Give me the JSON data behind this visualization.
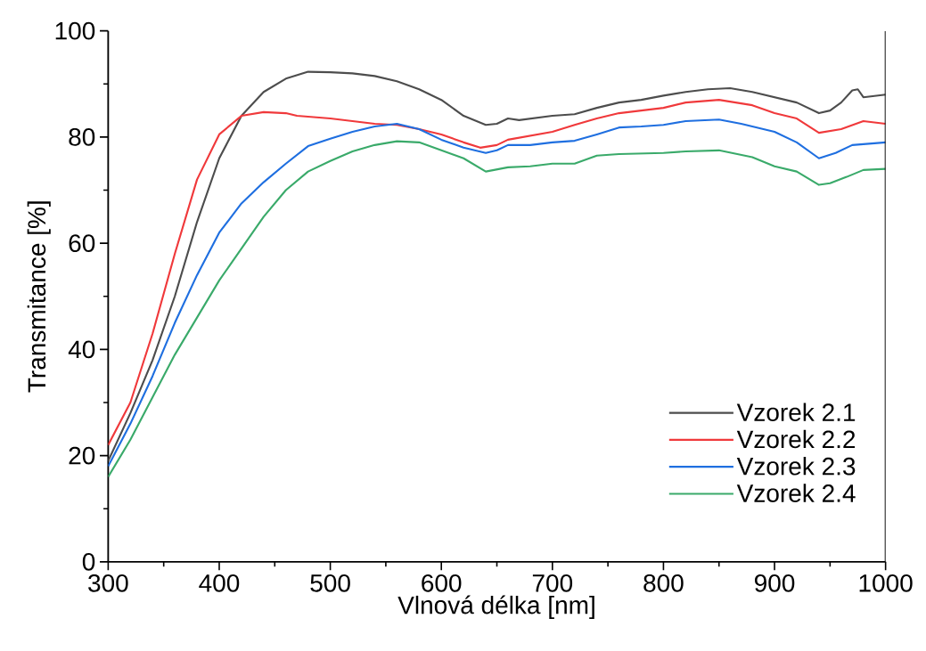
{
  "chart_data": {
    "type": "line",
    "xlabel": "Vlnová délka [nm]",
    "ylabel": "Transmitance [%]",
    "xlim": [
      300,
      1000
    ],
    "ylim": [
      0,
      100
    ],
    "xticks": [
      300,
      400,
      500,
      600,
      700,
      800,
      900,
      1000
    ],
    "yticks": [
      0,
      20,
      40,
      60,
      80,
      100
    ],
    "legend": "bottom right",
    "grid": false,
    "marker": "none",
    "line_style": "solid",
    "series": [
      {
        "name": "Vzorek 2.1",
        "color": "#4d4d4d",
        "x": [
          300,
          320,
          340,
          360,
          380,
          400,
          420,
          440,
          460,
          480,
          500,
          520,
          540,
          560,
          580,
          600,
          620,
          640,
          650,
          660,
          670,
          700,
          720,
          740,
          760,
          780,
          800,
          820,
          840,
          860,
          880,
          900,
          920,
          940,
          950,
          960,
          970,
          975,
          980,
          1000
        ],
        "values": [
          19,
          28,
          38,
          50,
          64,
          76,
          84,
          88.5,
          91,
          92.3,
          92.2,
          92,
          91.5,
          90.5,
          89,
          87,
          84,
          82.3,
          82.5,
          83.5,
          83.2,
          84,
          84.3,
          85.5,
          86.5,
          87,
          87.8,
          88.5,
          89,
          89.2,
          88.5,
          87.5,
          86.5,
          84.5,
          85,
          86.5,
          88.8,
          89,
          87.5,
          88
        ]
      },
      {
        "name": "Vzorek 2.2",
        "color": "#f0393b",
        "x": [
          300,
          320,
          340,
          360,
          380,
          400,
          420,
          440,
          460,
          470,
          500,
          540,
          560,
          580,
          600,
          620,
          635,
          650,
          660,
          700,
          720,
          740,
          760,
          780,
          800,
          820,
          850,
          880,
          900,
          920,
          940,
          960,
          980,
          1000
        ],
        "values": [
          22,
          30,
          43,
          58,
          72,
          80.5,
          84,
          84.7,
          84.5,
          84,
          83.5,
          82.5,
          82.3,
          81.5,
          80.5,
          79,
          78,
          78.5,
          79.5,
          81,
          82.3,
          83.5,
          84.5,
          85,
          85.5,
          86.5,
          87,
          86,
          84.5,
          83.5,
          80.8,
          81.5,
          83,
          82.5
        ]
      },
      {
        "name": "Vzorek 2.3",
        "color": "#1f6fe0",
        "x": [
          300,
          320,
          340,
          360,
          380,
          400,
          420,
          440,
          460,
          480,
          500,
          520,
          540,
          560,
          580,
          600,
          620,
          640,
          650,
          660,
          680,
          700,
          720,
          740,
          760,
          780,
          800,
          820,
          850,
          870,
          900,
          920,
          940,
          955,
          970,
          1000
        ],
        "values": [
          18,
          26,
          35,
          45,
          54,
          62,
          67.5,
          71.5,
          75,
          78.3,
          79.7,
          81,
          82,
          82.5,
          81.5,
          79.5,
          78,
          77,
          77.5,
          78.5,
          78.5,
          79,
          79.3,
          80.5,
          81.8,
          82,
          82.3,
          83,
          83.3,
          82.5,
          81,
          79,
          76,
          77,
          78.5,
          79
        ]
      },
      {
        "name": "Vzorek 2.4",
        "color": "#3aaa6a",
        "x": [
          300,
          320,
          340,
          360,
          380,
          400,
          420,
          440,
          460,
          480,
          500,
          520,
          540,
          560,
          580,
          600,
          620,
          640,
          660,
          680,
          700,
          720,
          740,
          760,
          800,
          820,
          850,
          880,
          900,
          920,
          940,
          950,
          965,
          980,
          1000
        ],
        "values": [
          16,
          23,
          31,
          39,
          46,
          53,
          59,
          65,
          70,
          73.5,
          75.5,
          77.3,
          78.5,
          79.2,
          79,
          77.5,
          76,
          73.5,
          74.3,
          74.5,
          75,
          75,
          76.5,
          76.8,
          77,
          77.3,
          77.5,
          76.2,
          74.5,
          73.5,
          71,
          71.3,
          72.5,
          73.8,
          74
        ]
      }
    ]
  }
}
